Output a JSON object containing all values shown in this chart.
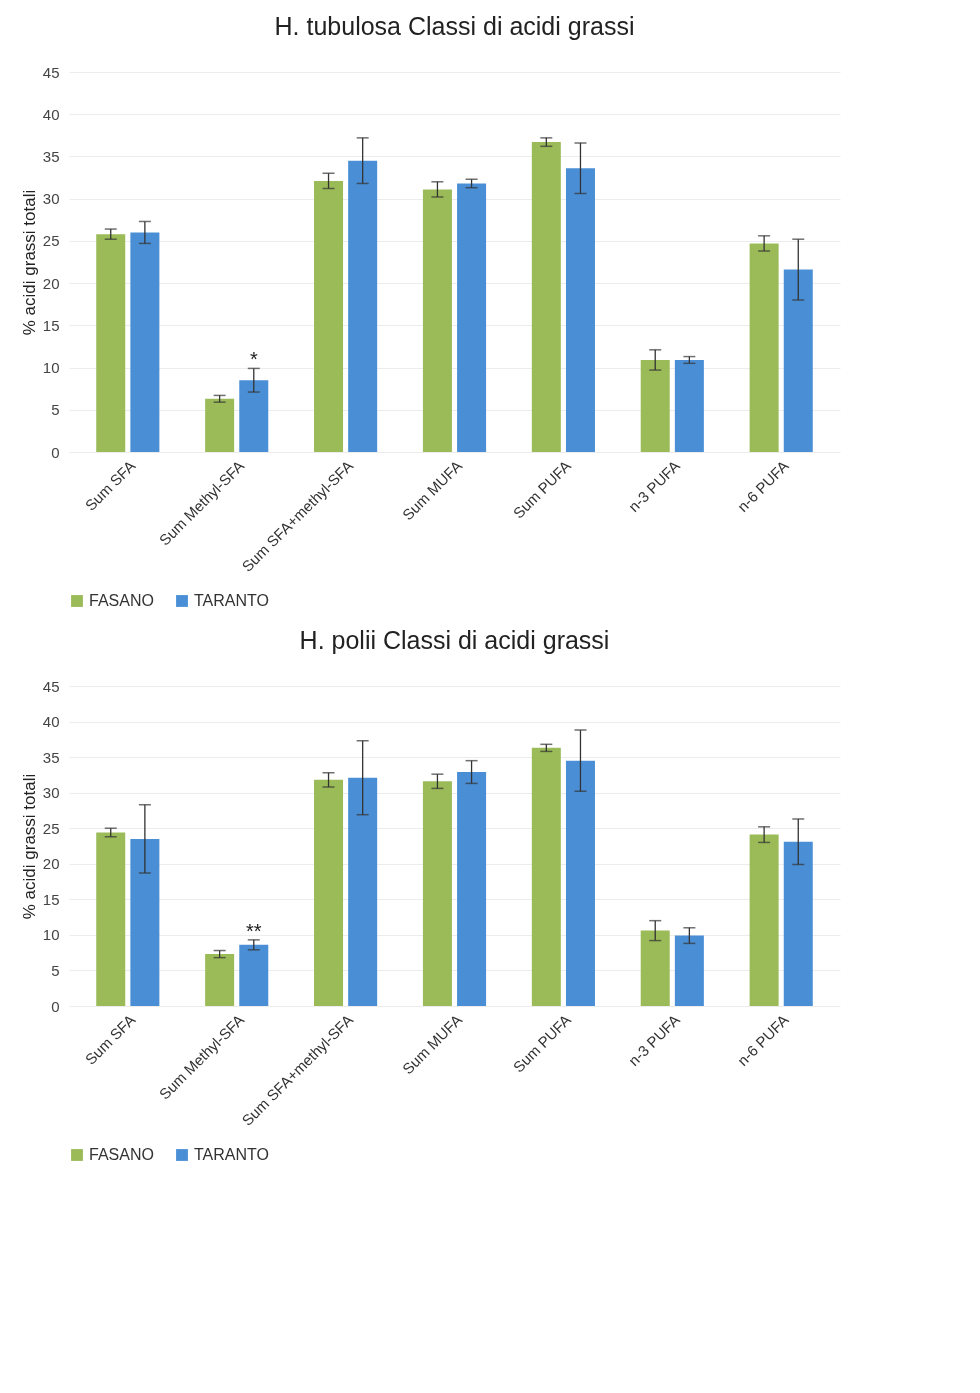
{
  "chart_data": [
    {
      "type": "bar",
      "title": "H. tubulosa Classi di acidi grassi",
      "ylabel": "% acidi grassi totali",
      "categories": [
        "Sum SFA",
        "Sum Methyl-SFA",
        "Sum SFA+methyl-SFA",
        "Sum MUFA",
        "Sum PUFA",
        "n-3 PUFA",
        "n-6 PUFA"
      ],
      "series": [
        {
          "name": "FASANO",
          "color": "#9bbb59",
          "values": [
            25.8,
            6.3,
            32.1,
            31.1,
            36.7,
            10.9,
            24.7
          ],
          "errors": [
            0.6,
            0.4,
            0.9,
            0.9,
            0.5,
            1.2,
            0.9
          ]
        },
        {
          "name": "TARANTO",
          "color": "#4a8fd6",
          "values": [
            26.0,
            8.5,
            34.5,
            31.8,
            33.6,
            10.9,
            21.6
          ],
          "errors": [
            1.3,
            1.4,
            2.7,
            0.5,
            3.0,
            0.4,
            3.6
          ]
        }
      ],
      "ylim": [
        0,
        45
      ],
      "yticks": [
        0,
        5,
        10,
        15,
        20,
        25,
        30,
        35,
        40,
        45
      ],
      "grid": "y",
      "legend": "bottom",
      "annotations": [
        {
          "text": "*",
          "x": "Sum Methyl-SFA",
          "y": 8.5
        }
      ]
    },
    {
      "type": "bar",
      "title": "H. polii Classi di acidi grassi",
      "ylabel": "% acidi grassi totali",
      "categories": [
        "Sum SFA",
        "Sum Methyl-SFA",
        "Sum SFA+methyl-SFA",
        "Sum MUFA",
        "Sum PUFA",
        "n-3 PUFA",
        "n-6 PUFA"
      ],
      "series": [
        {
          "name": "FASANO",
          "color": "#9bbb59",
          "values": [
            24.4,
            7.3,
            31.8,
            31.6,
            36.3,
            10.6,
            24.1
          ],
          "errors": [
            0.6,
            0.5,
            1.0,
            1.0,
            0.5,
            1.4,
            1.1
          ]
        },
        {
          "name": "TARANTO",
          "color": "#4a8fd6",
          "values": [
            23.5,
            8.6,
            32.1,
            32.9,
            34.5,
            9.9,
            23.1
          ],
          "errors": [
            4.8,
            0.7,
            5.2,
            1.6,
            4.3,
            1.1,
            3.2
          ]
        }
      ],
      "ylim": [
        0,
        45
      ],
      "yticks": [
        0,
        5,
        10,
        15,
        20,
        25,
        30,
        35,
        40,
        45
      ],
      "grid": "y",
      "legend": "bottom",
      "annotations": [
        {
          "text": "**",
          "x": "Sum Methyl-SFA",
          "y": 8.6
        }
      ]
    }
  ]
}
